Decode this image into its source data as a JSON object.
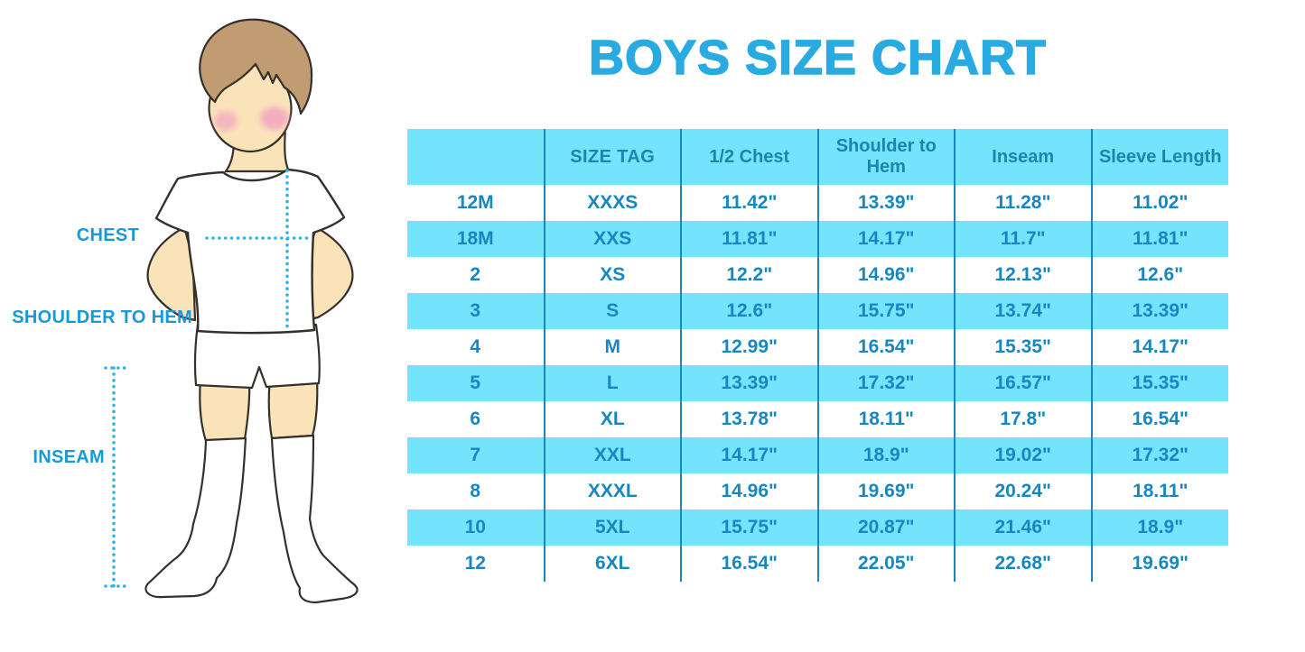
{
  "title": {
    "text": "BOYS SIZE CHART"
  },
  "figure": {
    "labels": {
      "chest": "CHEST",
      "shoulder_to_hem": "SHOULDER TO HEM",
      "inseam": "INSEAM"
    }
  },
  "table": {
    "columns": [
      "",
      "SIZE TAG",
      "1/2 Chest",
      "Shoulder to Hem",
      "Inseam",
      "Sleeve Length"
    ],
    "rows": [
      [
        "12M",
        "XXXS",
        "11.42\"",
        "13.39\"",
        "11.28\"",
        "11.02\""
      ],
      [
        "18M",
        "XXS",
        "11.81\"",
        "14.17\"",
        "11.7\"",
        "11.81\""
      ],
      [
        "2",
        "XS",
        "12.2\"",
        "14.96\"",
        "12.13\"",
        "12.6\""
      ],
      [
        "3",
        "S",
        "12.6\"",
        "15.75\"",
        "13.74\"",
        "13.39\""
      ],
      [
        "4",
        "M",
        "12.99\"",
        "16.54\"",
        "15.35\"",
        "14.17\""
      ],
      [
        "5",
        "L",
        "13.39\"",
        "17.32\"",
        "16.57\"",
        "15.35\""
      ],
      [
        "6",
        "XL",
        "13.78\"",
        "18.11\"",
        "17.8\"",
        "16.54\""
      ],
      [
        "7",
        "XXL",
        "14.17\"",
        "18.9\"",
        "19.02\"",
        "17.32\""
      ],
      [
        "8",
        "XXXL",
        "14.96\"",
        "19.69\"",
        "20.24\"",
        "18.11\""
      ],
      [
        "10",
        "5XL",
        "15.75\"",
        "20.87\"",
        "21.46\"",
        "18.9\""
      ],
      [
        "12",
        "6XL",
        "16.54\"",
        "22.05\"",
        "22.68\"",
        "19.69\""
      ]
    ]
  },
  "colors": {
    "title": "#29ABE2",
    "band": "#74E3FC",
    "header_text": "#1D84AE",
    "body_text": "#1787C2",
    "divider": "#1687BF",
    "label_text": "#1899D8",
    "dotted_line": "#35B3E8",
    "skin": "#FBE3B9",
    "hair": "#C19B71",
    "cheek": "#F2A3C2",
    "outline": "#34302B",
    "garment": "#FFFFFF"
  },
  "chart_data": {
    "type": "table",
    "title": "BOYS SIZE CHART",
    "columns": [
      "",
      "SIZE TAG",
      "1/2 Chest",
      "Shoulder to Hem",
      "Inseam",
      "Sleeve Length"
    ],
    "rows": [
      [
        "12M",
        "XXXS",
        "11.42\"",
        "13.39\"",
        "11.28\"",
        "11.02\""
      ],
      [
        "18M",
        "XXS",
        "11.81\"",
        "14.17\"",
        "11.7\"",
        "11.81\""
      ],
      [
        "2",
        "XS",
        "12.2\"",
        "14.96\"",
        "12.13\"",
        "12.6\""
      ],
      [
        "3",
        "S",
        "12.6\"",
        "15.75\"",
        "13.74\"",
        "13.39\""
      ],
      [
        "4",
        "M",
        "12.99\"",
        "16.54\"",
        "15.35\"",
        "14.17\""
      ],
      [
        "5",
        "L",
        "13.39\"",
        "17.32\"",
        "16.57\"",
        "15.35\""
      ],
      [
        "6",
        "XL",
        "13.78\"",
        "18.11\"",
        "17.8\"",
        "16.54\""
      ],
      [
        "7",
        "XXL",
        "14.17\"",
        "18.9\"",
        "19.02\"",
        "17.32\""
      ],
      [
        "8",
        "XXXL",
        "14.96\"",
        "19.69\"",
        "20.24\"",
        "18.11\""
      ],
      [
        "10",
        "5XL",
        "15.75\"",
        "20.87\"",
        "21.46\"",
        "18.9\""
      ],
      [
        "12",
        "6XL",
        "16.54\"",
        "22.05\"",
        "22.68\"",
        "19.69\""
      ]
    ]
  }
}
